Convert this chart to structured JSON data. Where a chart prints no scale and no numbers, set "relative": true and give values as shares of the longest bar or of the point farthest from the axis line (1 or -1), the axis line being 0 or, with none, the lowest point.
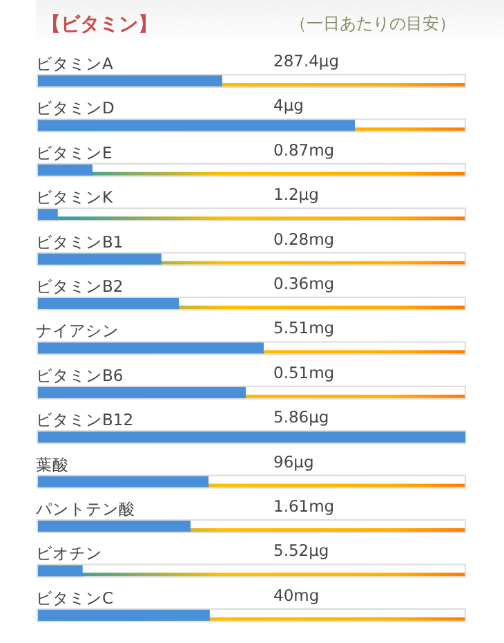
{
  "chart_data": {
    "type": "bar",
    "orientation": "horizontal",
    "relative": true,
    "title": "【ビタミン】",
    "subtitle": "（一日あたりの目安）",
    "categories": [
      "ビタミンA",
      "ビタミンD",
      "ビタミンE",
      "ビタミンK",
      "ビタミンB1",
      "ビタミンB2",
      "ナイアシン",
      "ビタミンB6",
      "ビタミンB12",
      "葉酸",
      "パントテン酸",
      "ビオチン",
      "ビタミンC"
    ],
    "values": [
      0.432,
      0.742,
      0.129,
      0.048,
      0.29,
      0.331,
      0.529,
      0.487,
      1.0,
      0.4,
      0.358,
      0.106,
      0.403
    ],
    "annotations": [
      "287.4μg",
      "4μg",
      "0.87mg",
      "1.2μg",
      "0.28mg",
      "0.36mg",
      "5.51mg",
      "0.51mg",
      "5.86μg",
      "96μg",
      "1.61mg",
      "5.52μg",
      "40mg"
    ],
    "color": "#4a90d9"
  }
}
